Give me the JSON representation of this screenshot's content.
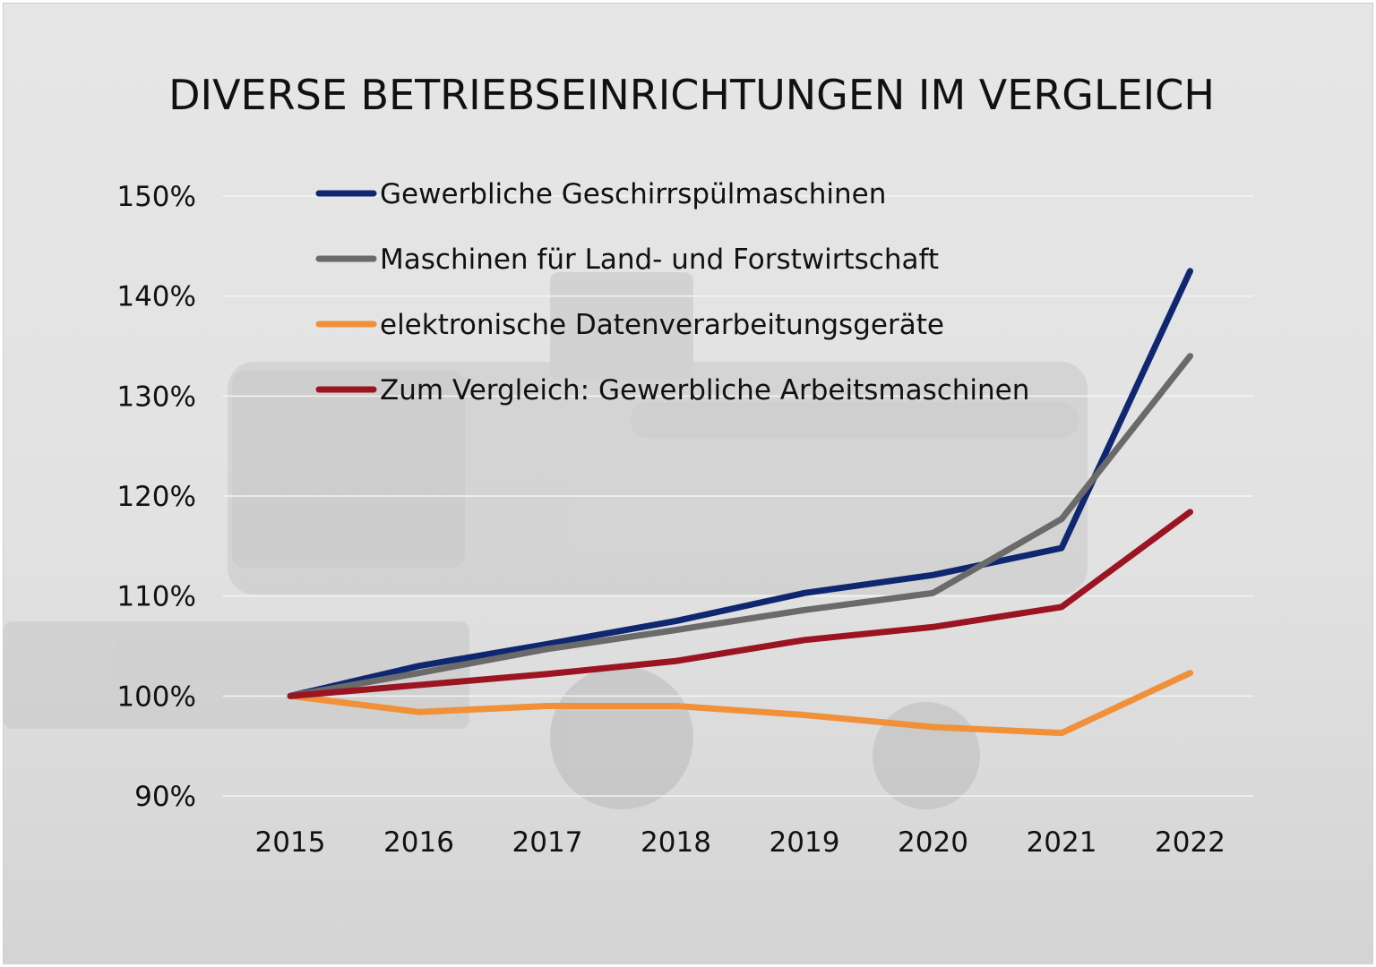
{
  "chart_data": {
    "type": "line",
    "title": "DIVERSE BETRIEBSEINRICHTUNGEN IM VERGLEICH",
    "xlabel": "",
    "ylabel": "",
    "categories": [
      "2015",
      "2016",
      "2017",
      "2018",
      "2019",
      "2020",
      "2021",
      "2022"
    ],
    "ylim": [
      90,
      150
    ],
    "yticks": [
      90,
      100,
      110,
      120,
      130,
      140,
      150
    ],
    "ytick_labels": [
      "90%",
      "100%",
      "110%",
      "120%",
      "130%",
      "140%",
      "150%"
    ],
    "grid": true,
    "legend_position": "top-left",
    "series": [
      {
        "name": "Gewerbliche Geschirrspülmaschinen",
        "color": "#0f2770",
        "values": [
          100,
          103,
          105.2,
          107.5,
          110.3,
          112.1,
          114.8,
          142.5
        ]
      },
      {
        "name": "Maschinen für Land- und Forstwirtschaft",
        "color": "#6a6a6a",
        "values": [
          100,
          102.3,
          104.7,
          106.6,
          108.6,
          110.3,
          117.7,
          134
        ]
      },
      {
        "name": "elektronische Datenverarbeitungsgeräte",
        "color": "#f0913a",
        "values": [
          100,
          98.4,
          99,
          99,
          98.1,
          96.9,
          96.3,
          102.3
        ]
      },
      {
        "name": "Zum Vergleich: Gewerbliche Arbeitsmaschinen",
        "color": "#9b1422",
        "values": [
          100,
          101.1,
          102.2,
          103.5,
          105.6,
          106.9,
          108.9,
          118.4
        ]
      }
    ]
  }
}
